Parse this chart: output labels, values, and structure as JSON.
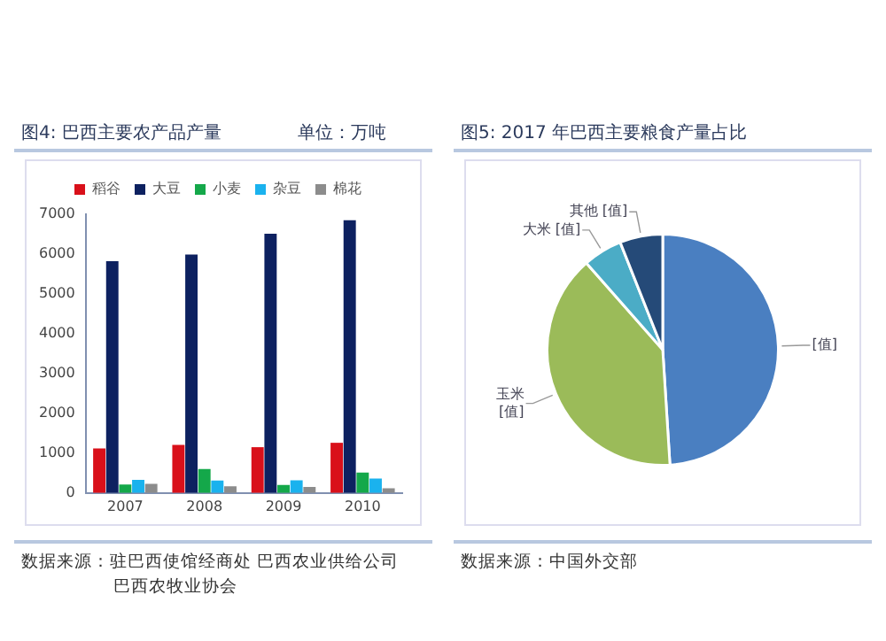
{
  "chart_data": [
    {
      "type": "bar",
      "title": "图4: 巴西主要农产品产量",
      "subtitle": "单位：万吨",
      "categories": [
        "2007",
        "2008",
        "2009",
        "2010"
      ],
      "series": [
        {
          "name": "稻谷",
          "color": "#d9101a",
          "values": [
            1120,
            1210,
            1150,
            1260
          ]
        },
        {
          "name": "大豆",
          "color": "#0d2160",
          "values": [
            5820,
            5990,
            6510,
            6850
          ]
        },
        {
          "name": "小麦",
          "color": "#14a84a",
          "values": [
            210,
            600,
            200,
            510
          ]
        },
        {
          "name": "杂豆",
          "color": "#1ab2ee",
          "values": [
            330,
            310,
            320,
            360
          ]
        },
        {
          "name": "棉花",
          "color": "#8c8c8c",
          "values": [
            230,
            170,
            150,
            120
          ]
        }
      ],
      "ylim": [
        0,
        7000
      ],
      "yticks": [
        0,
        1000,
        2000,
        3000,
        4000,
        5000,
        6000,
        7000
      ],
      "grid": false,
      "legend": "top",
      "annotations": [
        "数据来源：驻巴西使馆经商处 巴西农业供给公司",
        "巴西农牧业协会"
      ]
    },
    {
      "type": "pie",
      "title": "图5: 2017 年巴西主要粮食产量占比",
      "categories": [
        null,
        "玉米",
        "大米",
        "其他"
      ],
      "values": [
        49,
        39.5,
        5.5,
        6
      ],
      "colors": [
        "#4a7fc1",
        "#9bbb59",
        "#4bacc6",
        "#254a78"
      ],
      "value_labels": [
        "[值]",
        "[值]",
        "[值]",
        "[值]"
      ],
      "annotations": [
        "数据来源：中国外交部"
      ]
    }
  ]
}
